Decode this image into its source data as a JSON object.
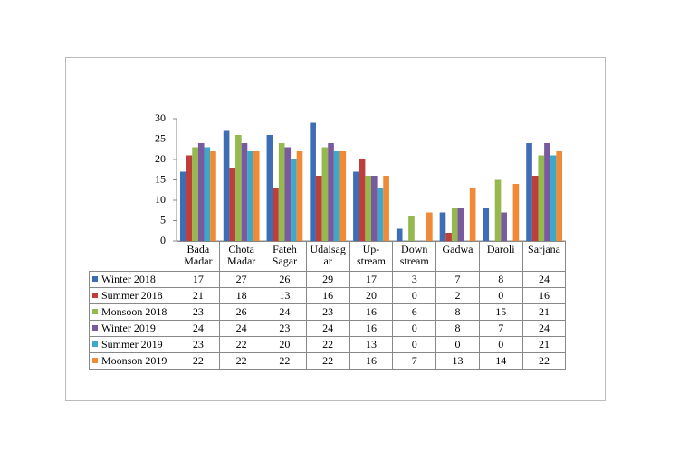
{
  "chart_data": {
    "type": "bar",
    "categories": [
      "Bada\nMadar",
      "Chota\nMadar",
      "Fateh\nSagar",
      "Udaisag\nar",
      "Up-\nstream",
      "Down\nstream",
      "Gadwa",
      "Daroli",
      "Sarjana"
    ],
    "series": [
      {
        "name": "Winter 2018",
        "color": "#3d6db5",
        "values": [
          17,
          27,
          26,
          29,
          17,
          3,
          7,
          8,
          24
        ]
      },
      {
        "name": "Summer 2018",
        "color": "#be3e3a",
        "values": [
          21,
          18,
          13,
          16,
          20,
          0,
          2,
          0,
          16
        ]
      },
      {
        "name": "Monsoon 2018",
        "color": "#95b94f",
        "values": [
          23,
          26,
          24,
          23,
          16,
          6,
          8,
          15,
          21
        ]
      },
      {
        "name": "Winter 2019",
        "color": "#7a5a9e",
        "values": [
          24,
          24,
          23,
          24,
          16,
          0,
          8,
          7,
          24
        ]
      },
      {
        "name": "Summer 2019",
        "color": "#3fa8c8",
        "values": [
          23,
          22,
          20,
          22,
          13,
          0,
          0,
          0,
          21
        ]
      },
      {
        "name": "Moonson 2019",
        "color": "#f08a36",
        "values": [
          22,
          22,
          22,
          22,
          16,
          7,
          13,
          14,
          22
        ]
      }
    ],
    "ylim": [
      0,
      30
    ],
    "yticks": [
      0,
      5,
      10,
      15,
      20,
      25,
      30
    ]
  }
}
